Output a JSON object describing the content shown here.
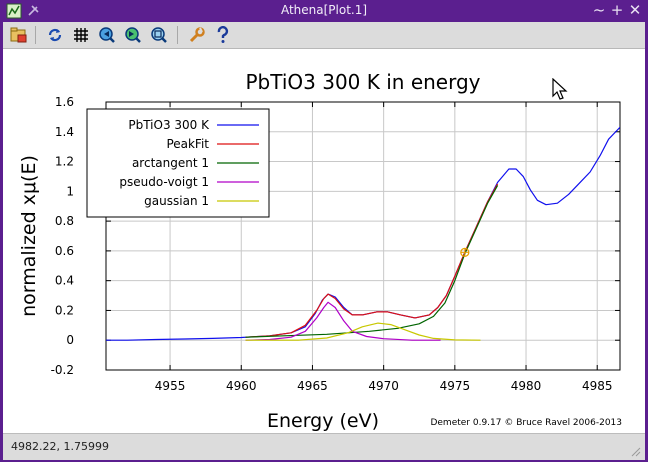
{
  "window": {
    "title": "Athena[Plot.1]",
    "controls": {
      "minimize": "~",
      "maximize": "+",
      "close": "✕"
    }
  },
  "toolbar": {
    "items": [
      {
        "name": "save-image-button",
        "icon": "folder-save-icon"
      },
      {
        "name": "refresh-button",
        "icon": "refresh-icon"
      },
      {
        "name": "grid-button",
        "icon": "grid-icon"
      },
      {
        "name": "zoom-out-button",
        "icon": "zoom-out-icon"
      },
      {
        "name": "zoom-in-button",
        "icon": "zoom-in-icon"
      },
      {
        "name": "zoom-box-button",
        "icon": "zoom-box-icon"
      },
      {
        "name": "settings-button",
        "icon": "wrench-icon"
      },
      {
        "name": "help-button",
        "icon": "question-icon"
      }
    ]
  },
  "plot": {
    "credit": "Demeter 0.9.17 © Bruce Ravel 2006-2013"
  },
  "chart_data": {
    "type": "line",
    "title": "PbTiO3 300 K in energy",
    "xlabel": "Energy    (eV)",
    "ylabel": "normalized xμ(E)",
    "xlim": [
      4950.5,
      4986.6
    ],
    "ylim": [
      -0.2,
      1.6
    ],
    "xticks": [
      4955,
      4960,
      4965,
      4970,
      4975,
      4980,
      4985
    ],
    "yticks": [
      -0.2,
      0,
      0.2,
      0.4,
      0.6,
      0.8,
      1,
      1.2,
      1.4,
      1.6
    ],
    "ytick_labels": [
      "-0.2",
      "0",
      "0.2",
      "0.4",
      "0.6",
      "0.8",
      "1",
      "1.2",
      "1.4",
      "1.6"
    ],
    "grid": true,
    "legend_position": "top-left",
    "marker": {
      "x": 4975.7,
      "y": 0.59,
      "color": "#e8a000"
    },
    "series": [
      {
        "name": "PbTiO3 300 K",
        "color": "#1010ee",
        "points": [
          [
            4950.5,
            0.0
          ],
          [
            4952,
            0.0
          ],
          [
            4954,
            0.005
          ],
          [
            4956,
            0.008
          ],
          [
            4958,
            0.012
          ],
          [
            4960,
            0.018
          ],
          [
            4962,
            0.03
          ],
          [
            4963.5,
            0.05
          ],
          [
            4964.5,
            0.09
          ],
          [
            4965.2,
            0.18
          ],
          [
            4965.7,
            0.27
          ],
          [
            4966.1,
            0.31
          ],
          [
            4966.6,
            0.29
          ],
          [
            4967.2,
            0.22
          ],
          [
            4967.8,
            0.17
          ],
          [
            4968.5,
            0.17
          ],
          [
            4969.5,
            0.19
          ],
          [
            4970.3,
            0.19
          ],
          [
            4971.2,
            0.17
          ],
          [
            4972.2,
            0.15
          ],
          [
            4973.2,
            0.17
          ],
          [
            4973.8,
            0.22
          ],
          [
            4974.4,
            0.3
          ],
          [
            4975,
            0.43
          ],
          [
            4975.7,
            0.59
          ],
          [
            4976.5,
            0.76
          ],
          [
            4977.3,
            0.93
          ],
          [
            4978,
            1.06
          ],
          [
            4978.8,
            1.15
          ],
          [
            4979.3,
            1.15
          ],
          [
            4979.8,
            1.1
          ],
          [
            4980.3,
            1.01
          ],
          [
            4980.8,
            0.94
          ],
          [
            4981.4,
            0.91
          ],
          [
            4982.2,
            0.92
          ],
          [
            4983,
            0.98
          ],
          [
            4983.8,
            1.06
          ],
          [
            4984.5,
            1.13
          ],
          [
            4985.2,
            1.24
          ],
          [
            4985.8,
            1.35
          ],
          [
            4986.6,
            1.43
          ]
        ]
      },
      {
        "name": "PeakFit",
        "color": "#dd1111",
        "points": [
          [
            4960.3,
            0.02
          ],
          [
            4962,
            0.03
          ],
          [
            4963.5,
            0.05
          ],
          [
            4964.5,
            0.1
          ],
          [
            4965.3,
            0.2
          ],
          [
            4965.8,
            0.28
          ],
          [
            4966.1,
            0.31
          ],
          [
            4966.6,
            0.28
          ],
          [
            4967.2,
            0.21
          ],
          [
            4967.8,
            0.17
          ],
          [
            4968.5,
            0.17
          ],
          [
            4969.5,
            0.19
          ],
          [
            4970.3,
            0.19
          ],
          [
            4971.2,
            0.17
          ],
          [
            4972.2,
            0.15
          ],
          [
            4973.2,
            0.17
          ],
          [
            4973.8,
            0.22
          ],
          [
            4974.4,
            0.3
          ],
          [
            4975,
            0.43
          ],
          [
            4975.7,
            0.59
          ],
          [
            4976.5,
            0.76
          ],
          [
            4977.3,
            0.93
          ],
          [
            4978,
            1.05
          ]
        ]
      },
      {
        "name": "arctangent 1",
        "color": "#006400",
        "points": [
          [
            4960.3,
            0.02
          ],
          [
            4963,
            0.03
          ],
          [
            4966,
            0.04
          ],
          [
            4969,
            0.06
          ],
          [
            4971,
            0.08
          ],
          [
            4972.5,
            0.11
          ],
          [
            4973.5,
            0.16
          ],
          [
            4974.3,
            0.25
          ],
          [
            4975,
            0.4
          ],
          [
            4975.7,
            0.58
          ],
          [
            4976.5,
            0.75
          ],
          [
            4977.3,
            0.92
          ],
          [
            4978,
            1.04
          ]
        ]
      },
      {
        "name": "pseudo-voigt 1",
        "color": "#b000c8",
        "points": [
          [
            4960.3,
            0.0
          ],
          [
            4962,
            0.005
          ],
          [
            4963.5,
            0.02
          ],
          [
            4964.5,
            0.06
          ],
          [
            4965.3,
            0.15
          ],
          [
            4965.8,
            0.22
          ],
          [
            4966.1,
            0.255
          ],
          [
            4966.6,
            0.22
          ],
          [
            4967.2,
            0.13
          ],
          [
            4967.8,
            0.06
          ],
          [
            4968.8,
            0.025
          ],
          [
            4970,
            0.01
          ],
          [
            4972,
            0.0
          ],
          [
            4974,
            0.0
          ]
        ]
      },
      {
        "name": "gaussian 1",
        "color": "#c8c800",
        "points": [
          [
            4960.3,
            0.0
          ],
          [
            4964,
            0.0
          ],
          [
            4966,
            0.015
          ],
          [
            4967.5,
            0.05
          ],
          [
            4968.5,
            0.09
          ],
          [
            4969.6,
            0.115
          ],
          [
            4970.5,
            0.105
          ],
          [
            4971.5,
            0.07
          ],
          [
            4972.5,
            0.035
          ],
          [
            4973.5,
            0.012
          ],
          [
            4975,
            0.002
          ],
          [
            4976.8,
            0.0
          ]
        ]
      }
    ]
  },
  "status": {
    "text": "4982.22, 1.75999"
  }
}
